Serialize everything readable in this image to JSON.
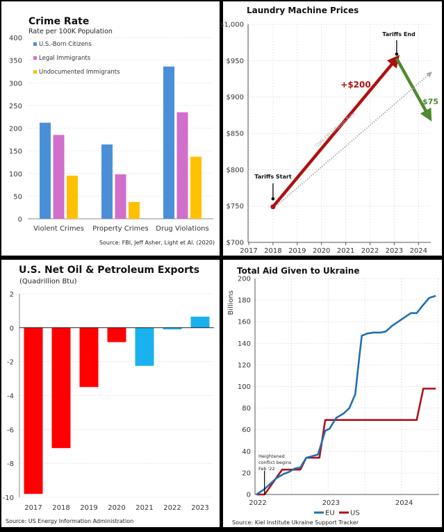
{
  "chart_data": [
    {
      "type": "bar",
      "title": "Crime Rate",
      "subtitle": "Rate per 100K Population",
      "categories": [
        "Violent Crimes",
        "Property Crimes",
        "Drug Violations"
      ],
      "series": [
        {
          "name": "U.S.-Born Citizens",
          "values": [
            212,
            164,
            336
          ],
          "color": "#4a90d9"
        },
        {
          "name": "Legal Immigrants",
          "values": [
            185,
            98,
            235
          ],
          "color": "#d26fca"
        },
        {
          "name": "Undocumented Immigrants",
          "values": [
            95,
            37,
            137
          ],
          "color": "#ffc000"
        }
      ],
      "ylim": [
        0,
        400
      ],
      "yticks": [
        "0",
        "50",
        "100",
        "150",
        "200",
        "250",
        "300",
        "350",
        "400"
      ],
      "legend": "top-left",
      "source": "Source: FBI, Jeff Asher, Light et Al. (2020)"
    },
    {
      "type": "line",
      "title": "Laundry Machine Prices",
      "xlim": [
        2017,
        2024.5
      ],
      "ylim": [
        700,
        1000
      ],
      "xticks": [
        "2017",
        "2018",
        "2019",
        "2020",
        "2021",
        "2022",
        "2023",
        "2024"
      ],
      "yticks": [
        "$700",
        "$750",
        "$800",
        "$850",
        "$900",
        "$950",
        "$1,000"
      ],
      "series": [
        {
          "label": "+$200",
          "points": [
            [
              2018,
              749
            ],
            [
              2023.1,
              953
            ]
          ],
          "color": "#b01010"
        },
        {
          "label": "-$75",
          "points": [
            [
              2023.1,
              953
            ],
            [
              2024.45,
              872
            ]
          ],
          "color": "#4e8a2e"
        },
        {
          "label": "Core CPI Inflation Rate",
          "points": [
            [
              2018.2,
              752
            ],
            [
              2024.5,
              933
            ]
          ],
          "color": "#aaaaaa",
          "style": "dotted"
        }
      ],
      "annotations": [
        {
          "text": "Tariffs Start",
          "x": 2018,
          "y": 760
        },
        {
          "text": "Tariffs End",
          "x": 2023.1,
          "y": 959
        }
      ]
    },
    {
      "type": "bar",
      "title": "U.S. Net Oil & Petroleum Exports",
      "subtitle": "(Quadrillion Btu)",
      "categories": [
        "2017",
        "2018",
        "2019",
        "2020",
        "2021",
        "2022",
        "2023"
      ],
      "values": [
        -9.8,
        -7.1,
        -3.5,
        -0.85,
        -2.25,
        -0.1,
        0.65
      ],
      "colors": [
        "#ff0000",
        "#ff0000",
        "#ff0000",
        "#ff0000",
        "#1ab2ee",
        "#1ab2ee",
        "#1ab2ee"
      ],
      "ylim": [
        -10,
        2
      ],
      "yticks": [
        "-10",
        "-8",
        "-6",
        "-4",
        "-2",
        "0",
        "2"
      ],
      "source": "Source: US Energy Information Administration"
    },
    {
      "type": "line",
      "title": "Total Aid Given to Ukraine",
      "ylabel": "Billions",
      "xlim": [
        2022,
        2024.5
      ],
      "ylim": [
        0,
        200
      ],
      "xticks": [
        "2022",
        "2023",
        "2024"
      ],
      "yticks": [
        "0",
        "20",
        "40",
        "60",
        "80",
        "100",
        "120",
        "140",
        "160",
        "180",
        "200"
      ],
      "series": [
        {
          "name": "EU",
          "color": "#1f6fb0",
          "points": [
            [
              2022.02,
              0
            ],
            [
              2022.13,
              5
            ],
            [
              2022.29,
              15
            ],
            [
              2022.39,
              19
            ],
            [
              2022.47,
              21
            ],
            [
              2022.54,
              24
            ],
            [
              2022.62,
              25
            ],
            [
              2022.7,
              34
            ],
            [
              2022.86,
              37
            ],
            [
              2022.96,
              59
            ],
            [
              2023.02,
              61
            ],
            [
              2023.11,
              71
            ],
            [
              2023.21,
              75
            ],
            [
              2023.29,
              80
            ],
            [
              2023.37,
              93
            ],
            [
              2023.43,
              130
            ],
            [
              2023.46,
              147
            ],
            [
              2023.53,
              149
            ],
            [
              2023.62,
              150
            ],
            [
              2023.72,
              150
            ],
            [
              2023.79,
              151
            ],
            [
              2023.87,
              156
            ],
            [
              2024.0,
              162
            ],
            [
              2024.13,
              168
            ],
            [
              2024.21,
              168
            ],
            [
              2024.28,
              174
            ],
            [
              2024.38,
              182
            ],
            [
              2024.47,
              184
            ]
          ]
        },
        {
          "name": "US",
          "color": "#b0101a",
          "points": [
            [
              2022.02,
              0
            ],
            [
              2022.13,
              0
            ],
            [
              2022.37,
              23
            ],
            [
              2022.62,
              23
            ],
            [
              2022.7,
              34
            ],
            [
              2022.88,
              34
            ],
            [
              2022.96,
              69
            ],
            [
              2024.21,
              69
            ],
            [
              2024.3,
              98
            ],
            [
              2024.47,
              98
            ]
          ]
        }
      ],
      "annotation": {
        "lines": [
          "Heightened",
          "conflict begins",
          "Feb '22"
        ],
        "x": 2022.13,
        "y": 22
      },
      "legend": "bottom",
      "source": "Source: Kiel Institute Ukraine Support Tracker"
    }
  ]
}
